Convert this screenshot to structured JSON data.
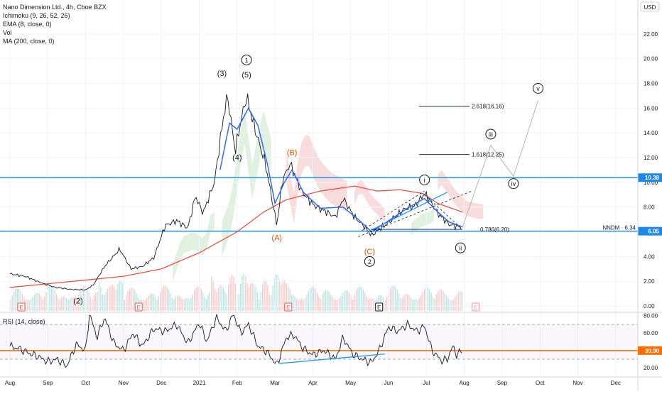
{
  "header": {
    "symbol_line": "Nano Dimension Ltd., 4h, Cboe BZX",
    "indicators": [
      "Ichimoku (9, 26, 52, 26)",
      "EMA (8, close, 0)",
      "Vol",
      "MA (200, close, 0)"
    ],
    "currency": "USD"
  },
  "rsi_label": "RSI (14, close)",
  "colors": {
    "price": "#131722",
    "ema": "#2962ff",
    "ma200": "#f44336",
    "hline": "#2196f3",
    "rsi_line": "#131722",
    "rsi_level": "#ff6d00",
    "trend": "#2196f3",
    "cloud_up": "#a5d6a7",
    "cloud_down": "#ef9a9a",
    "vol_up": "#26a69a",
    "vol_down": "#ef5350",
    "wave_orange": "#e65100",
    "ticker_badge": "#1e88e5"
  },
  "chart_data": [
    {
      "type": "line",
      "title": "Nano Dimension Ltd., 4h, Cboe BZX",
      "x_labels": [
        "Aug",
        "Sep",
        "Oct",
        "Nov",
        "Dec",
        "2021",
        "Feb",
        "Mar",
        "Apr",
        "May",
        "Jun",
        "Jul",
        "Aug",
        "Sep",
        "Oct",
        "Nov",
        "Dec"
      ],
      "y_ticks": [
        "22.00",
        "20.00",
        "18.00",
        "16.00",
        "14.00",
        "12.00",
        "10.00",
        "8.00",
        "6.00",
        "4.00",
        "2.00",
        "0.00"
      ],
      "ylim": [
        -0.4,
        23.6
      ],
      "price_path": [
        {
          "t": 0.0,
          "v": 2.6
        },
        {
          "t": 0.4,
          "v": 2.4
        },
        {
          "t": 0.8,
          "v": 1.9
        },
        {
          "t": 1.2,
          "v": 1.5
        },
        {
          "t": 1.6,
          "v": 1.35
        },
        {
          "t": 2.0,
          "v": 1.3
        },
        {
          "t": 2.2,
          "v": 1.7
        },
        {
          "t": 2.5,
          "v": 3.2
        },
        {
          "t": 2.9,
          "v": 4.6
        },
        {
          "t": 3.2,
          "v": 3.0
        },
        {
          "t": 3.5,
          "v": 3.2
        },
        {
          "t": 3.8,
          "v": 3.9
        },
        {
          "t": 4.1,
          "v": 6.5
        },
        {
          "t": 4.4,
          "v": 6.9
        },
        {
          "t": 4.7,
          "v": 6.3
        },
        {
          "t": 4.9,
          "v": 8.9
        },
        {
          "t": 5.1,
          "v": 7.5
        },
        {
          "t": 5.4,
          "v": 10.0
        },
        {
          "t": 5.65,
          "v": 15.5
        },
        {
          "t": 5.75,
          "v": 17.0
        },
        {
          "t": 5.95,
          "v": 12.5
        },
        {
          "t": 6.1,
          "v": 15.0
        },
        {
          "t": 6.25,
          "v": 16.9
        },
        {
          "t": 6.5,
          "v": 14.0
        },
        {
          "t": 6.75,
          "v": 11.5
        },
        {
          "t": 6.9,
          "v": 9.0
        },
        {
          "t": 7.05,
          "v": 6.5
        },
        {
          "t": 7.2,
          "v": 10.2
        },
        {
          "t": 7.4,
          "v": 11.5
        },
        {
          "t": 7.7,
          "v": 9.3
        },
        {
          "t": 8.0,
          "v": 8.2
        },
        {
          "t": 8.3,
          "v": 7.7
        },
        {
          "t": 8.6,
          "v": 7.2
        },
        {
          "t": 8.8,
          "v": 8.7
        },
        {
          "t": 9.1,
          "v": 7.2
        },
        {
          "t": 9.4,
          "v": 6.3
        },
        {
          "t": 9.55,
          "v": 5.7
        },
        {
          "t": 9.8,
          "v": 6.3
        },
        {
          "t": 10.1,
          "v": 7.0
        },
        {
          "t": 10.4,
          "v": 7.8
        },
        {
          "t": 10.7,
          "v": 8.1
        },
        {
          "t": 10.95,
          "v": 9.1
        },
        {
          "t": 11.1,
          "v": 8.5
        },
        {
          "t": 11.3,
          "v": 7.5
        },
        {
          "t": 11.6,
          "v": 6.6
        },
        {
          "t": 11.95,
          "v": 6.34
        }
      ],
      "ema_path": [
        {
          "t": 5.55,
          "v": 11.0
        },
        {
          "t": 5.8,
          "v": 14.8
        },
        {
          "t": 6.0,
          "v": 14.3
        },
        {
          "t": 6.3,
          "v": 16.0
        },
        {
          "t": 6.55,
          "v": 14.6
        },
        {
          "t": 6.8,
          "v": 11.5
        },
        {
          "t": 7.0,
          "v": 8.3
        },
        {
          "t": 7.25,
          "v": 10.0
        },
        {
          "t": 7.45,
          "v": 11.0
        },
        {
          "t": 7.75,
          "v": 9.2
        },
        {
          "t": 8.2,
          "v": 7.9
        },
        {
          "t": 8.8,
          "v": 8.0
        },
        {
          "t": 9.2,
          "v": 7.0
        },
        {
          "t": 9.55,
          "v": 6.0
        },
        {
          "t": 10.0,
          "v": 6.9
        },
        {
          "t": 10.5,
          "v": 7.9
        },
        {
          "t": 10.95,
          "v": 8.7
        },
        {
          "t": 11.3,
          "v": 7.6
        },
        {
          "t": 11.6,
          "v": 6.8
        },
        {
          "t": 11.95,
          "v": 6.4
        }
      ],
      "ma200_path": [
        {
          "t": 0.0,
          "v": 1.5
        },
        {
          "t": 1.0,
          "v": 1.8
        },
        {
          "t": 2.0,
          "v": 2.1
        },
        {
          "t": 3.0,
          "v": 2.4
        },
        {
          "t": 4.0,
          "v": 3.0
        },
        {
          "t": 5.0,
          "v": 4.3
        },
        {
          "t": 6.0,
          "v": 6.0
        },
        {
          "t": 6.7,
          "v": 7.6
        },
        {
          "t": 7.3,
          "v": 8.6
        },
        {
          "t": 8.2,
          "v": 9.3
        },
        {
          "t": 9.1,
          "v": 9.7
        },
        {
          "t": 9.7,
          "v": 9.3
        },
        {
          "t": 10.3,
          "v": 9.4
        },
        {
          "t": 10.9,
          "v": 9.1
        },
        {
          "t": 11.3,
          "v": 8.3
        },
        {
          "t": 11.95,
          "v": 7.6
        }
      ],
      "horizontal_levels": [
        10.38,
        6.05
      ],
      "right_labels": [
        {
          "text": "10.38",
          "v": 10.38
        },
        {
          "text": "6.05",
          "v": 6.05
        }
      ],
      "ticker_label": "NNDM · 6.34",
      "ticker_value": 6.34,
      "fib_levels": [
        {
          "text": "2.618(16.16)",
          "v": 16.16
        },
        {
          "text": "1.618(12.25)",
          "v": 12.25
        },
        {
          "text": "0.786(6.20)",
          "v": 6.2
        }
      ],
      "projection_path": [
        {
          "t": 11.95,
          "v": 6.34
        },
        {
          "t": 12.7,
          "v": 13.0
        },
        {
          "t": 13.3,
          "v": 10.5
        },
        {
          "t": 13.95,
          "v": 16.6
        }
      ],
      "wave_labels": [
        {
          "text": "(3)",
          "t": 5.6,
          "v": 18.6,
          "style": "plain"
        },
        {
          "text": "1",
          "t": 6.25,
          "v": 19.9,
          "style": "circle"
        },
        {
          "text": "(5)",
          "t": 6.25,
          "v": 18.5,
          "style": "plain"
        },
        {
          "text": "(4)",
          "t": 6.0,
          "v": 11.8,
          "style": "plain"
        },
        {
          "text": "(B)",
          "t": 7.45,
          "v": 12.2,
          "style": "orange"
        },
        {
          "text": "(A)",
          "t": 7.05,
          "v": 5.3,
          "style": "orange"
        },
        {
          "text": "(C)",
          "t": 9.5,
          "v": 4.2,
          "style": "orange"
        },
        {
          "text": "2",
          "t": 9.5,
          "v": 3.6,
          "style": "circle"
        },
        {
          "text": "(2)",
          "t": 1.8,
          "v": 0.2,
          "style": "plain"
        },
        {
          "text": "i",
          "t": 10.95,
          "v": 10.2,
          "style": "circle"
        },
        {
          "text": "ii",
          "t": 11.9,
          "v": 4.7,
          "style": "circle"
        },
        {
          "text": "iii",
          "t": 12.7,
          "v": 13.9,
          "style": "circle"
        },
        {
          "text": "iv",
          "t": 13.3,
          "v": 9.9,
          "style": "circle"
        },
        {
          "text": "v",
          "t": 13.95,
          "v": 17.6,
          "style": "circle"
        }
      ],
      "earnings_markers": [
        {
          "label": "E",
          "t": 0.3,
          "color": "#ef5350"
        },
        {
          "label": "E",
          "t": 3.4,
          "color": "#ef5350"
        },
        {
          "label": "E",
          "t": 7.35,
          "color": "#ef5350"
        },
        {
          "label": "E",
          "t": 9.75,
          "color": "#131722"
        },
        {
          "label": "E",
          "t": 12.3,
          "color": "#ef9a9a"
        }
      ]
    },
    {
      "type": "line",
      "title": "RSI (14, close)",
      "y_ticks": [
        "80.00",
        "60.00",
        "40.00",
        "20.00"
      ],
      "ylim": [
        12,
        83
      ],
      "levels": {
        "upper": 70,
        "lower": 30,
        "marker": 39.9
      },
      "marker_label": "39.90",
      "rsi_path": [
        {
          "t": 0.0,
          "v": 45
        },
        {
          "t": 0.25,
          "v": 42
        },
        {
          "t": 0.5,
          "v": 37
        },
        {
          "t": 0.75,
          "v": 33
        },
        {
          "t": 1.0,
          "v": 27
        },
        {
          "t": 1.25,
          "v": 30
        },
        {
          "t": 1.5,
          "v": 22
        },
        {
          "t": 1.75,
          "v": 47
        },
        {
          "t": 2.0,
          "v": 40
        },
        {
          "t": 2.1,
          "v": 82
        },
        {
          "t": 2.3,
          "v": 55
        },
        {
          "t": 2.5,
          "v": 78
        },
        {
          "t": 2.75,
          "v": 48
        },
        {
          "t": 3.0,
          "v": 40
        },
        {
          "t": 3.25,
          "v": 60
        },
        {
          "t": 3.5,
          "v": 45
        },
        {
          "t": 3.8,
          "v": 65
        },
        {
          "t": 4.1,
          "v": 62
        },
        {
          "t": 4.4,
          "v": 70
        },
        {
          "t": 4.7,
          "v": 48
        },
        {
          "t": 5.0,
          "v": 72
        },
        {
          "t": 5.2,
          "v": 50
        },
        {
          "t": 5.45,
          "v": 78
        },
        {
          "t": 5.7,
          "v": 62
        },
        {
          "t": 5.9,
          "v": 82
        },
        {
          "t": 6.1,
          "v": 60
        },
        {
          "t": 6.3,
          "v": 70
        },
        {
          "t": 6.55,
          "v": 45
        },
        {
          "t": 6.8,
          "v": 38
        },
        {
          "t": 7.05,
          "v": 23
        },
        {
          "t": 7.3,
          "v": 55
        },
        {
          "t": 7.5,
          "v": 58
        },
        {
          "t": 7.75,
          "v": 42
        },
        {
          "t": 8.0,
          "v": 35
        },
        {
          "t": 8.3,
          "v": 40
        },
        {
          "t": 8.6,
          "v": 30
        },
        {
          "t": 8.8,
          "v": 55
        },
        {
          "t": 9.05,
          "v": 36
        },
        {
          "t": 9.3,
          "v": 30
        },
        {
          "t": 9.55,
          "v": 26
        },
        {
          "t": 9.75,
          "v": 40
        },
        {
          "t": 10.0,
          "v": 67
        },
        {
          "t": 10.25,
          "v": 62
        },
        {
          "t": 10.5,
          "v": 70
        },
        {
          "t": 10.75,
          "v": 62
        },
        {
          "t": 10.95,
          "v": 68
        },
        {
          "t": 11.15,
          "v": 40
        },
        {
          "t": 11.4,
          "v": 28
        },
        {
          "t": 11.55,
          "v": 30
        },
        {
          "t": 11.7,
          "v": 45
        },
        {
          "t": 11.8,
          "v": 35
        },
        {
          "t": 11.95,
          "v": 40
        }
      ],
      "trendline": {
        "t1": 7.1,
        "v1": 25,
        "t2": 9.9,
        "v2": 36
      }
    }
  ]
}
